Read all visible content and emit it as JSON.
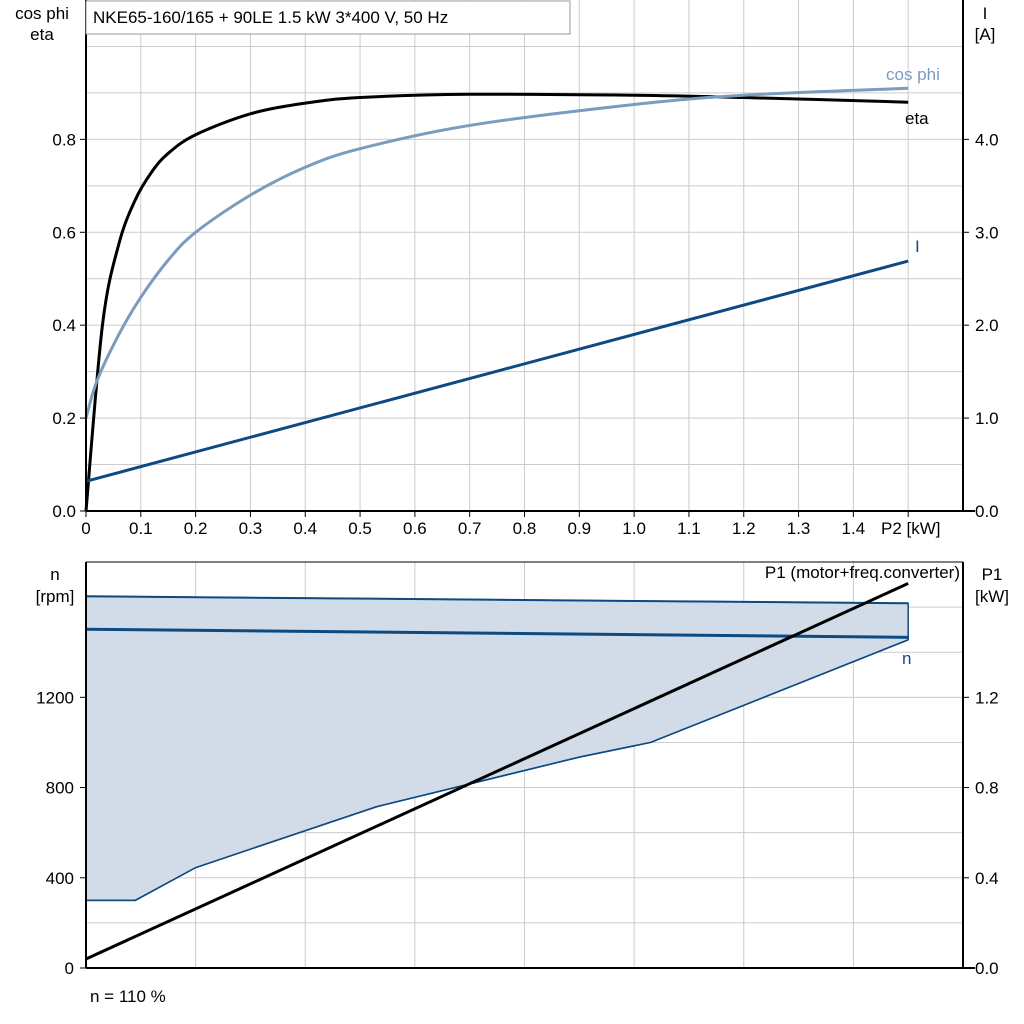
{
  "title": "NKE65-160/165 + 90LE   1.5 kW   3*400 V, 50 Hz",
  "footer": "n = 110 %",
  "colors": {
    "eta": "#000000",
    "cos_phi": "#7a9cbf",
    "current": "#0d4a82",
    "n": "#0d4a82",
    "n_fill": "#d1dce8",
    "p1": "#000000",
    "grid": "#cccccc"
  },
  "chart_data": [
    {
      "type": "line",
      "xlabel": "P2 [kW]",
      "ylabel_left": [
        "cos phi",
        "eta"
      ],
      "ylabel_right": [
        "I",
        "[A]"
      ],
      "xlim": [
        0,
        1.6
      ],
      "ylim_left": [
        0,
        1.1
      ],
      "ylim_right": [
        0,
        5.5
      ],
      "x_ticks": [
        "0",
        "0.1",
        "0.2",
        "0.3",
        "0.4",
        "0.5",
        "0.6",
        "0.7",
        "0.8",
        "0.9",
        "1.0",
        "1.1",
        "1.2",
        "1.3",
        "1.4"
      ],
      "y_ticks_left": [
        "0.0",
        "0.2",
        "0.4",
        "0.6",
        "0.8"
      ],
      "y_ticks_right": [
        "0.0",
        "1.0",
        "2.0",
        "3.0",
        "4.0"
      ],
      "grid": true,
      "series": [
        {
          "name": "eta",
          "axis": "left",
          "x": [
            0,
            0.03,
            0.06,
            0.09,
            0.12,
            0.15,
            0.2,
            0.3,
            0.4,
            0.5,
            0.7,
            1.0,
            1.2,
            1.5
          ],
          "y": [
            0,
            0.4,
            0.575,
            0.67,
            0.73,
            0.77,
            0.81,
            0.855,
            0.878,
            0.89,
            0.897,
            0.895,
            0.89,
            0.88
          ]
        },
        {
          "name": "cos phi",
          "axis": "left",
          "x": [
            0,
            0.02,
            0.06,
            0.1,
            0.15,
            0.2,
            0.3,
            0.4,
            0.5,
            0.7,
            1.0,
            1.2,
            1.5
          ],
          "y": [
            0.2,
            0.28,
            0.38,
            0.46,
            0.54,
            0.6,
            0.68,
            0.74,
            0.78,
            0.83,
            0.875,
            0.895,
            0.91
          ]
        },
        {
          "name": "I",
          "axis": "right",
          "x": [
            0,
            1.5
          ],
          "y": [
            0.32,
            2.69
          ]
        }
      ]
    },
    {
      "type": "area",
      "ylabel_left": [
        "n",
        "[rpm]"
      ],
      "ylabel_right": [
        "P1",
        "[kW]"
      ],
      "xlim": [
        0,
        1.6
      ],
      "ylim_left": [
        0,
        1800
      ],
      "ylim_right": [
        0,
        1.8
      ],
      "y_ticks_left": [
        "0",
        "400",
        "800",
        "1200"
      ],
      "y_ticks_right": [
        "0.0",
        "0.4",
        "0.8",
        "1.2"
      ],
      "grid": true,
      "series": [
        {
          "name": "n",
          "role": "nominal",
          "axis": "left",
          "x": [
            0,
            1.5
          ],
          "y": [
            1502,
            1466
          ]
        },
        {
          "name": "n max",
          "role": "upper-bound",
          "axis": "left",
          "x": [
            0,
            1.5
          ],
          "y": [
            1648,
            1617
          ]
        },
        {
          "name": "n min",
          "role": "lower-bound",
          "axis": "left",
          "x": [
            0,
            0.09,
            0.2,
            0.53,
            0.9,
            1.03,
            1.5
          ],
          "y": [
            300,
            300,
            445,
            715,
            935,
            1000,
            1455
          ]
        },
        {
          "name": "P1 (motor+freq.converter)",
          "axis": "right",
          "x": [
            0,
            1.5
          ],
          "y": [
            0.04,
            1.705
          ]
        }
      ]
    }
  ]
}
